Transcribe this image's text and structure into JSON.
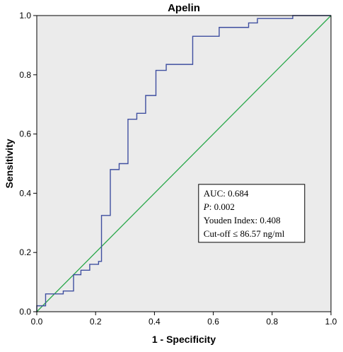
{
  "chart_data": {
    "type": "line",
    "title": "Apelin",
    "xlabel": "1 - Specificity",
    "ylabel": "Sensitivity",
    "xlim": [
      0.0,
      1.0
    ],
    "ylim": [
      0.0,
      1.0
    ],
    "x_ticks": [
      "0.0",
      "0.2",
      "0.4",
      "0.6",
      "0.8",
      "1.0"
    ],
    "y_ticks": [
      "0.0",
      "0.2",
      "0.4",
      "0.6",
      "0.8",
      "1.0"
    ],
    "grid": false,
    "series": [
      {
        "color": "#3f4fa0",
        "points": [
          [
            0.0,
            0.0
          ],
          [
            0.0,
            0.02
          ],
          [
            0.03,
            0.02
          ],
          [
            0.03,
            0.06
          ],
          [
            0.09,
            0.06
          ],
          [
            0.09,
            0.07
          ],
          [
            0.125,
            0.07
          ],
          [
            0.125,
            0.125
          ],
          [
            0.15,
            0.125
          ],
          [
            0.15,
            0.14
          ],
          [
            0.18,
            0.14
          ],
          [
            0.18,
            0.16
          ],
          [
            0.21,
            0.16
          ],
          [
            0.21,
            0.17
          ],
          [
            0.22,
            0.17
          ],
          [
            0.22,
            0.325
          ],
          [
            0.25,
            0.325
          ],
          [
            0.25,
            0.48
          ],
          [
            0.28,
            0.48
          ],
          [
            0.28,
            0.5
          ],
          [
            0.31,
            0.5
          ],
          [
            0.31,
            0.65
          ],
          [
            0.34,
            0.65
          ],
          [
            0.34,
            0.67
          ],
          [
            0.37,
            0.67
          ],
          [
            0.37,
            0.73
          ],
          [
            0.405,
            0.73
          ],
          [
            0.405,
            0.815
          ],
          [
            0.44,
            0.815
          ],
          [
            0.44,
            0.835
          ],
          [
            0.53,
            0.835
          ],
          [
            0.53,
            0.93
          ],
          [
            0.62,
            0.93
          ],
          [
            0.62,
            0.96
          ],
          [
            0.72,
            0.96
          ],
          [
            0.72,
            0.975
          ],
          [
            0.75,
            0.975
          ],
          [
            0.75,
            0.99
          ],
          [
            0.87,
            0.99
          ],
          [
            0.87,
            1.0
          ],
          [
            1.0,
            1.0
          ]
        ]
      },
      {
        "color": "#2aa84a",
        "points": [
          [
            0.0,
            0.0
          ],
          [
            1.0,
            1.0
          ]
        ]
      }
    ],
    "annotations": [
      {
        "label": "AUC: 0.684"
      },
      {
        "label_italic": "P",
        "label": ": 0.002"
      },
      {
        "label": "Youden Index: 0.408"
      },
      {
        "label": "Cut-off ≤ 86.57 ng/ml"
      }
    ],
    "annotation_box_anchor": {
      "x": 0.55,
      "y": 0.43
    },
    "colors": {
      "plot_background": "#ebebeb",
      "roc_line": "#3f4fa0",
      "reference_line": "#2aa84a"
    }
  }
}
